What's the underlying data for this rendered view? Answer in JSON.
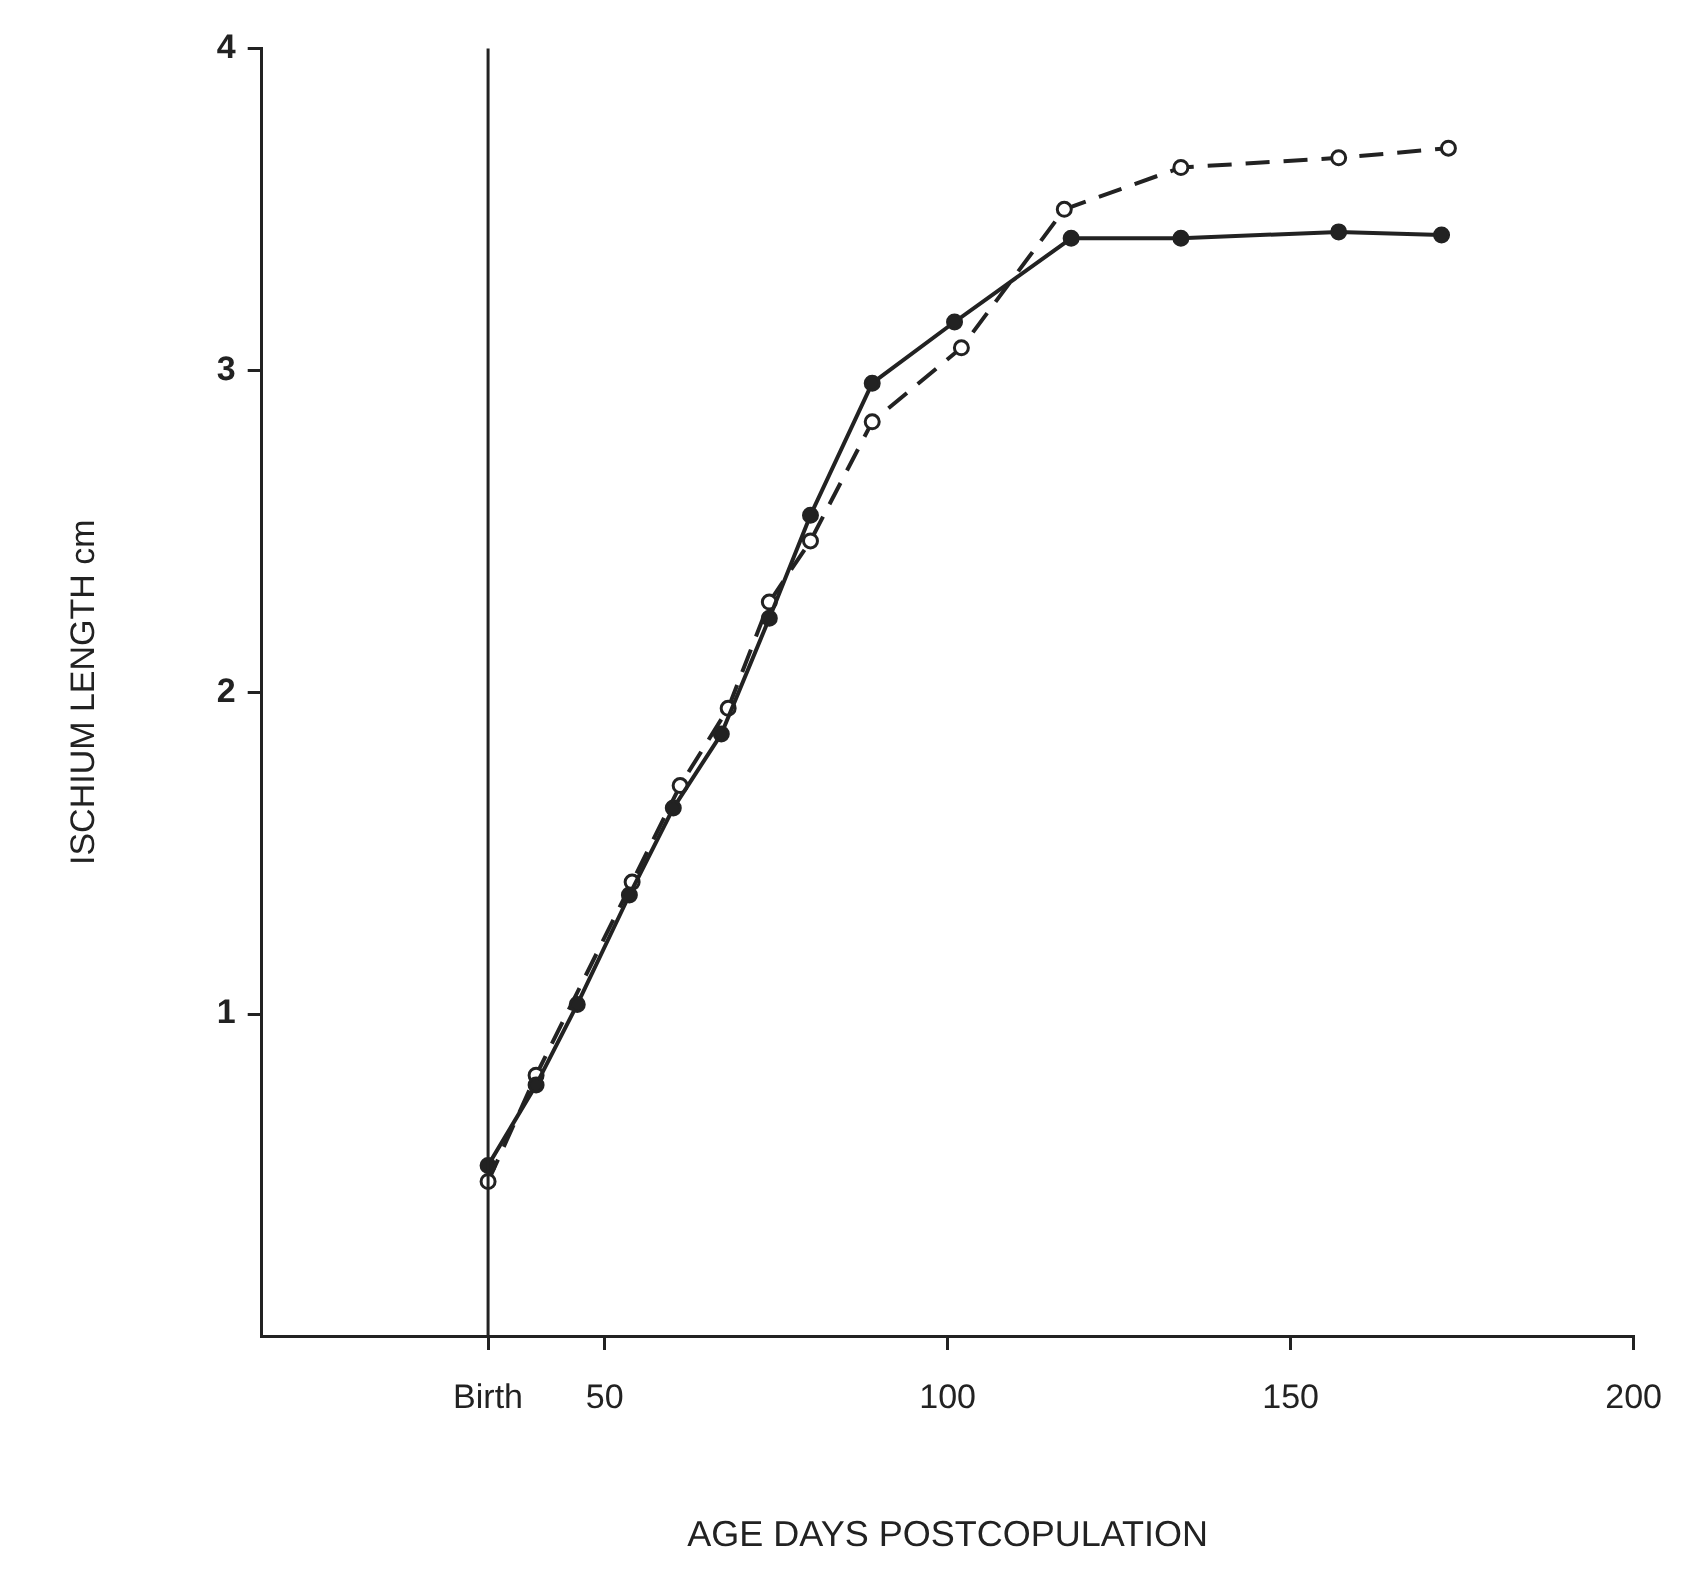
{
  "chart_data": {
    "type": "line",
    "xlabel": "AGE DAYS POSTCOPULATION",
    "ylabel": "ISCHIUM LENGTH cm",
    "xlim": [
      0,
      200
    ],
    "xticks": [
      {
        "value": 33,
        "label": "Birth"
      },
      50,
      100,
      150,
      200
    ],
    "ylim": [
      0,
      4
    ],
    "yticks": [
      1,
      2,
      3,
      4
    ],
    "grid": false,
    "marker": "circle",
    "ref_lines": [
      {
        "axis": "x",
        "value": 33,
        "color": "#222222"
      }
    ],
    "series": [
      {
        "color": "#222222",
        "line_style": "solid",
        "x": [
          33,
          40,
          46,
          53.6,
          60,
          67,
          74,
          80,
          89,
          101,
          118,
          134,
          157,
          172
        ],
        "values": [
          0.53,
          0.78,
          1.03,
          1.37,
          1.64,
          1.87,
          2.23,
          2.55,
          2.96,
          3.15,
          3.41,
          3.41,
          3.43,
          3.42
        ]
      },
      {
        "color": "#222222",
        "line_style": "dashed",
        "x": [
          33,
          40,
          46,
          54,
          61,
          68,
          74,
          80,
          89,
          102,
          117,
          134,
          157,
          173
        ],
        "values": [
          0.48,
          0.81,
          null,
          1.41,
          1.71,
          1.95,
          2.28,
          2.47,
          2.84,
          3.07,
          3.5,
          3.63,
          3.66,
          3.69
        ]
      }
    ]
  }
}
